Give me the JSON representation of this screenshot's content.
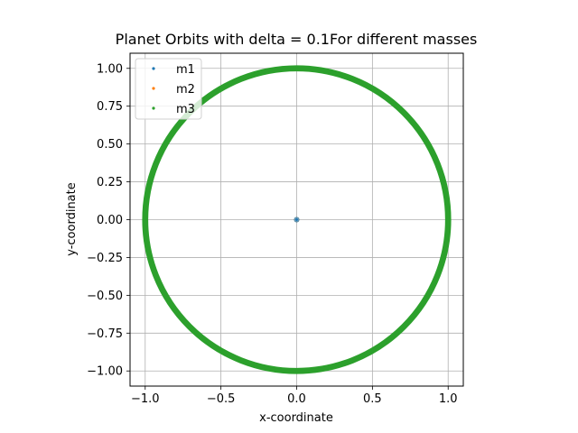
{
  "chart_data": {
    "type": "scatter",
    "title": "Planet Orbits with delta = 0.1For different masses",
    "xlabel": "x-coordinate",
    "ylabel": "y-coordinate",
    "xlim": [
      -1.1,
      1.1
    ],
    "ylim": [
      -1.1,
      1.1
    ],
    "xticks": [
      -1.0,
      -0.5,
      0.0,
      0.5,
      1.0
    ],
    "xtick_labels": [
      "−1.0",
      "−0.5",
      "0.0",
      "0.5",
      "1.0"
    ],
    "yticks": [
      1.0,
      0.75,
      0.5,
      0.25,
      0.0,
      -0.25,
      -0.5,
      -0.75,
      -1.0
    ],
    "ytick_labels": [
      "1.00",
      "0.75",
      "0.50",
      "0.25",
      "0.00",
      "−0.25",
      "−0.50",
      "−0.75",
      "−1.00"
    ],
    "grid": true,
    "legend_position": "top-left",
    "series": [
      {
        "name": "m1",
        "color": "#1f77b4",
        "shape": "point at origin",
        "x": [
          0.0
        ],
        "y": [
          0.0
        ]
      },
      {
        "name": "m2",
        "color": "#ff7f0e",
        "shape": "circular orbit",
        "radius_min": 0.985,
        "radius_max": 1.015
      },
      {
        "name": "m3",
        "color": "#2ca02c",
        "shape": "circular orbit",
        "radius_min": 0.98,
        "radius_max": 1.02
      }
    ],
    "center_marker": {
      "x": 0.0,
      "y": 0.0
    }
  }
}
